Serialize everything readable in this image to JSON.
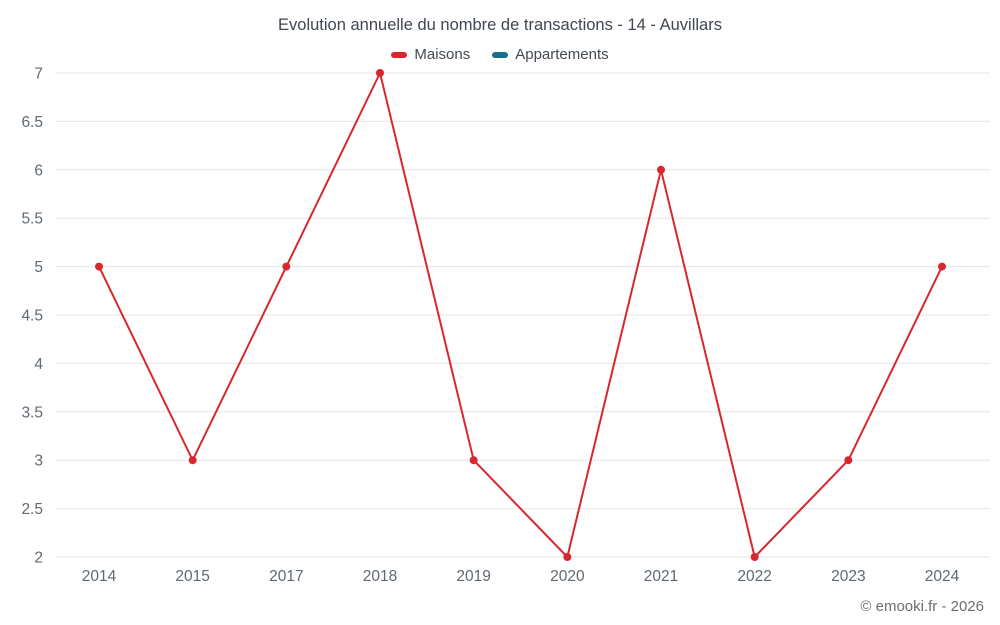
{
  "chart": {
    "footer": "© emooki.fr - 2026"
  },
  "chart_data": {
    "type": "line",
    "title": "Evolution annuelle du nombre de transactions - 14 - Auvillars",
    "categories": [
      "2014",
      "2015",
      "2017",
      "2018",
      "2019",
      "2020",
      "2021",
      "2022",
      "2023",
      "2024"
    ],
    "series": [
      {
        "name": "Maisons",
        "color": "#d7282f",
        "values": [
          5,
          3,
          5,
          7,
          3,
          2,
          6,
          2,
          3,
          5
        ]
      },
      {
        "name": "Appartements",
        "color": "#1b6d8d",
        "values": []
      }
    ],
    "xlabel": "",
    "ylabel": "",
    "ylim": [
      2,
      7
    ],
    "ytick_step": 0.5,
    "grid": "horizontal",
    "gridline_color": "#e6e6e6",
    "axis_label_color": "#5f6973",
    "legend_position": "top"
  }
}
